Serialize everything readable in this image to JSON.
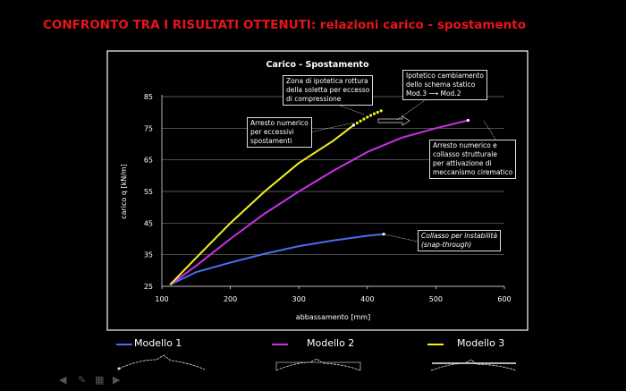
{
  "slide_title": "CONFRONTO TRA I RISULTATI OTTENUTI: relazioni carico - spostamento",
  "chart_data": {
    "type": "line",
    "title": "Carico - Spostamento",
    "xlabel": "abbassamento [mm]",
    "ylabel": "carico q [kN/m]",
    "xlim": [
      100,
      600
    ],
    "ylim": [
      25,
      85
    ],
    "xticks": [
      100,
      200,
      300,
      400,
      500,
      600
    ],
    "yticks": [
      25,
      35,
      45,
      55,
      65,
      75,
      85
    ],
    "grid": "horizontal",
    "legend_placement": "bottom",
    "series": [
      {
        "name": "Modello 1",
        "color": "#4a6cf0",
        "x": [
          112,
          150,
          200,
          250,
          300,
          350,
          400,
          424
        ],
        "y": [
          25.5,
          29.5,
          32.5,
          35.3,
          37.7,
          39.5,
          41,
          41.5
        ]
      },
      {
        "name": "Modello 2",
        "color": "#c832e6",
        "x": [
          112,
          150,
          200,
          250,
          300,
          350,
          400,
          450,
          500,
          547
        ],
        "y": [
          25.5,
          31.5,
          40,
          48,
          55,
          61.5,
          67.5,
          72,
          75,
          77.5
        ]
      },
      {
        "name": "Modello 3",
        "color": "#f2f21e",
        "x": [
          112,
          150,
          200,
          250,
          300,
          350,
          380
        ],
        "y": [
          25.5,
          34,
          45,
          55,
          64,
          71,
          76
        ],
        "dotted_extension": {
          "x": [
            380,
            390,
            400,
            410,
            420
          ],
          "y": [
            76,
            77.3,
            78.5,
            79.6,
            80.5
          ]
        }
      }
    ],
    "annotations": [
      {
        "id": "zona",
        "lines": [
          "Zona di ipotetica rottura",
          "della soletta per eccesso",
          "di compressione"
        ],
        "italic": false
      },
      {
        "id": "arresto3",
        "lines": [
          "Arresto numerico",
          "per eccessivi",
          "spostamenti"
        ],
        "italic": false
      },
      {
        "id": "ipotetico",
        "lines": [
          "Ipotetico cambiamento",
          "dello schema statico",
          "Mod.3 ⟶  Mod.2"
        ],
        "italic": false
      },
      {
        "id": "arresto2",
        "lines": [
          "Arresto numerico e",
          "collasso strutturale",
          "per attivazione di",
          "meccanismo cirematico"
        ],
        "italic": false
      },
      {
        "id": "collasso",
        "lines": [
          "Collasso per instabilità",
          "(snap-through)"
        ],
        "italic": true
      }
    ]
  },
  "nav_icons": [
    "arrow-left-icon",
    "pen-icon",
    "screen-icon",
    "arrow-right-icon"
  ]
}
